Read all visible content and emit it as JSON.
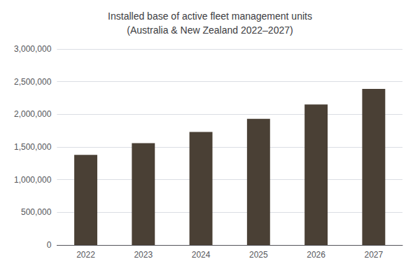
{
  "chart_data": {
    "type": "bar",
    "title": "Installed base of active fleet management units\n(Australia & New Zealand 2022–2027)",
    "categories": [
      "2022",
      "2023",
      "2024",
      "2025",
      "2026",
      "2027"
    ],
    "values": [
      1380000,
      1560000,
      1730000,
      1930000,
      2150000,
      2390000
    ],
    "color": "#4a4035",
    "ylim": [
      0,
      3000000
    ],
    "yticks": [
      0,
      {
        "value": 500000,
        "label": "500,000"
      },
      {
        "value": 1000000,
        "label": "1,000,000"
      },
      {
        "value": 1500000,
        "label": "1,500,000"
      },
      {
        "value": 2000000,
        "label": "2,000,000"
      },
      {
        "value": 2500000,
        "label": "2,500,000"
      },
      {
        "value": 3000000,
        "label": "3,000,000"
      }
    ],
    "grid": true
  }
}
